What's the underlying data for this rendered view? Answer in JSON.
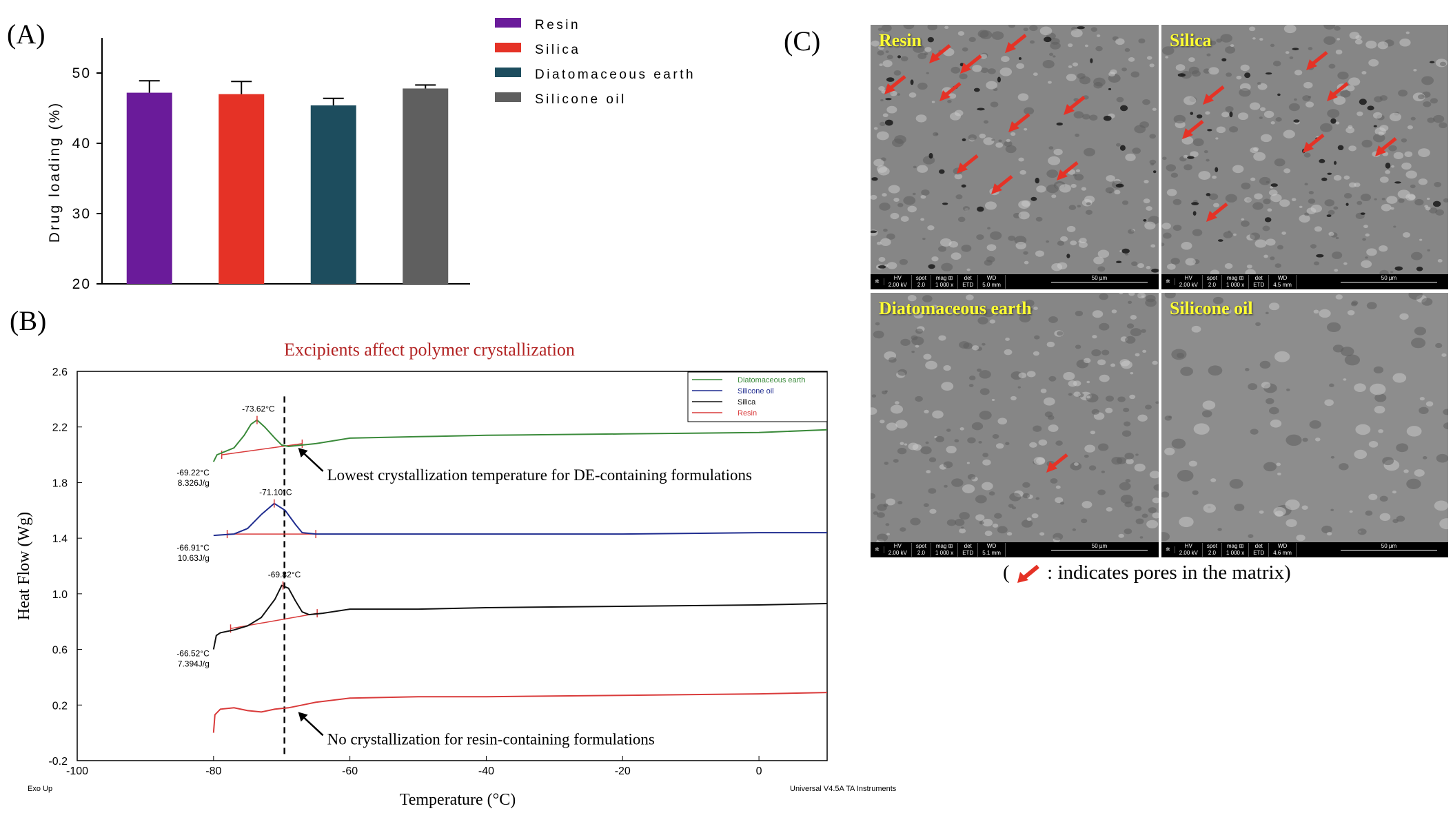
{
  "panel_labels": {
    "a": "(A)",
    "b": "(B)",
    "c": "(C)"
  },
  "colors": {
    "resin": "#6a1b9a",
    "silica": "#e53226",
    "diatomaceous_earth": "#1d4d5e",
    "silicone_oil": "#5f5f5f",
    "dsc_de": "#3a8a3a",
    "dsc_silicone": "#1f2c8f",
    "dsc_silica": "#111111",
    "dsc_resin": "#d93a3a",
    "title_red": "#b22222",
    "sem_label": "#ffff33",
    "arrow": "#e53226"
  },
  "chart_data": [
    {
      "id": "A",
      "type": "bar",
      "categories": [
        "Resin",
        "Silica",
        "Diatomaceous earth",
        "Silicone oil"
      ],
      "values": [
        47.2,
        47.0,
        45.4,
        47.8
      ],
      "errors": [
        1.7,
        1.8,
        1.0,
        0.5
      ],
      "ylabel": "Drug loading (%)",
      "ylim": [
        20,
        55
      ],
      "yticks": [
        20,
        30,
        40,
        50
      ],
      "legend": [
        "Resin",
        "Silica",
        "Diatomaceous earth",
        "Silicone oil"
      ],
      "legend_position": "top-right"
    },
    {
      "id": "B",
      "type": "line",
      "title": "Excipients affect polymer crystallization",
      "xlabel": "Temperature (°C)",
      "ylabel": "Heat Flow (Wg)",
      "xlim": [
        -100,
        10
      ],
      "ylim": [
        -0.2,
        2.6
      ],
      "xticks": [
        -100,
        -80,
        -60,
        -40,
        -20,
        0
      ],
      "yticks": [
        -0.2,
        0.2,
        0.6,
        1.0,
        1.4,
        1.8,
        2.2,
        2.6
      ],
      "ytick_labels": [
        "-0.2",
        "0.2",
        "0.6",
        "1.0",
        "1.4",
        "1.8",
        "2.2",
        "2.6"
      ],
      "legend": [
        "Diatomaceous earth",
        "Silicone oil",
        "Silica",
        "Resin"
      ],
      "legend_position": "top-right",
      "dashed_line_x": -69.6,
      "series": [
        {
          "name": "Diatomaceous earth",
          "x": [
            -80,
            -79.5,
            -77,
            -75.5,
            -74.5,
            -73.62,
            -72.5,
            -71,
            -70,
            -69,
            -67,
            -65,
            -60,
            -50,
            -40,
            -20,
            0,
            10
          ],
          "y": [
            1.95,
            2.0,
            2.05,
            2.14,
            2.22,
            2.25,
            2.2,
            2.12,
            2.07,
            2.06,
            2.07,
            2.08,
            2.12,
            2.13,
            2.14,
            2.15,
            2.16,
            2.18
          ]
        },
        {
          "name": "Silicone oil",
          "x": [
            -80,
            -77,
            -75,
            -73,
            -71.1,
            -69.5,
            -68,
            -67,
            -65,
            -60,
            -40,
            -20,
            0,
            10
          ],
          "y": [
            1.42,
            1.43,
            1.47,
            1.57,
            1.65,
            1.6,
            1.5,
            1.44,
            1.43,
            1.43,
            1.43,
            1.43,
            1.44,
            1.44
          ]
        },
        {
          "name": "Silica",
          "x": [
            -80,
            -79.6,
            -79,
            -77,
            -75,
            -73,
            -71,
            -70,
            -69,
            -68,
            -67,
            -66,
            -64,
            -60,
            -50,
            -40,
            -20,
            0,
            10
          ],
          "y": [
            0.6,
            0.7,
            0.72,
            0.74,
            0.77,
            0.83,
            0.96,
            1.06,
            1.04,
            0.95,
            0.87,
            0.85,
            0.86,
            0.89,
            0.89,
            0.9,
            0.91,
            0.92,
            0.93
          ]
        },
        {
          "name": "Resin",
          "x": [
            -80,
            -79.8,
            -79,
            -77,
            -75,
            -73,
            -71,
            -69,
            -67,
            -65,
            -60,
            -50,
            -40,
            -20,
            0,
            10
          ],
          "y": [
            0.0,
            0.13,
            0.17,
            0.18,
            0.16,
            0.15,
            0.17,
            0.18,
            0.2,
            0.22,
            0.25,
            0.26,
            0.26,
            0.27,
            0.28,
            0.29
          ]
        }
      ],
      "baselines": [
        {
          "name": "Diatomaceous earth",
          "x": [
            -78.8,
            -67
          ],
          "y": [
            2.0,
            2.08
          ]
        },
        {
          "name": "Silicone oil",
          "x": [
            -78,
            -65
          ],
          "y": [
            1.43,
            1.43
          ]
        },
        {
          "name": "Silica",
          "x": [
            -77.5,
            -64.8
          ],
          "y": [
            0.75,
            0.86
          ]
        }
      ],
      "peak_labels": [
        {
          "text": "-73.62°C",
          "x": -73.62,
          "y": 2.25
        },
        {
          "text": "-71.10°C",
          "x": -71.1,
          "y": 1.65
        },
        {
          "text": "-69.82°C",
          "x": -69.82,
          "y": 1.06
        }
      ],
      "onset_labels": [
        {
          "lines": [
            "-69.22°C",
            "8.326J/g"
          ],
          "x": -80,
          "y": 1.96
        },
        {
          "lines": [
            "-66.91°C",
            "10.63J/g"
          ],
          "x": -80,
          "y": 1.42
        },
        {
          "lines": [
            "-66.52°C",
            "7.394J/g"
          ],
          "x": -80,
          "y": 0.66
        }
      ],
      "annotations": [
        {
          "text": "Lowest crystallization temperature for DE-containing formulations",
          "x": -69,
          "y": 2.07
        },
        {
          "text": "No crystallization for resin-containing formulations",
          "x": -69,
          "y": 0.17
        }
      ],
      "footer_left": "Exo Up",
      "footer_right": "Universal V4.5A TA Instruments"
    }
  ],
  "sem_panels": [
    {
      "label": "Resin",
      "hv": "2.00 kV",
      "spot": "2.0",
      "mag": "1 000 x",
      "det": "ETD",
      "wd": "5.0 mm",
      "scale": "50 µm"
    },
    {
      "label": "Silica",
      "hv": "2.00 kV",
      "spot": "2.0",
      "mag": "1 000 x",
      "det": "ETD",
      "wd": "4.5 mm",
      "scale": "50 µm"
    },
    {
      "label": "Diatomaceous earth",
      "hv": "2.00 kV",
      "spot": "2.0",
      "mag": "1 000 x",
      "det": "ETD",
      "wd": "5.1 mm",
      "scale": "50 µm"
    },
    {
      "label": "Silicone oil",
      "hv": "2.00 kV",
      "spot": "2.0",
      "mag": "1 000 x",
      "det": "ETD",
      "wd": "4.6 mm",
      "scale": "50 µm"
    }
  ],
  "sem_bar_headers": {
    "hv": "HV",
    "spot": "spot",
    "mag": "mag ⊞",
    "det": "det",
    "wd": "WD"
  },
  "caption_c": {
    "open": "(",
    "text": " : indicates pores in the matrix)"
  }
}
